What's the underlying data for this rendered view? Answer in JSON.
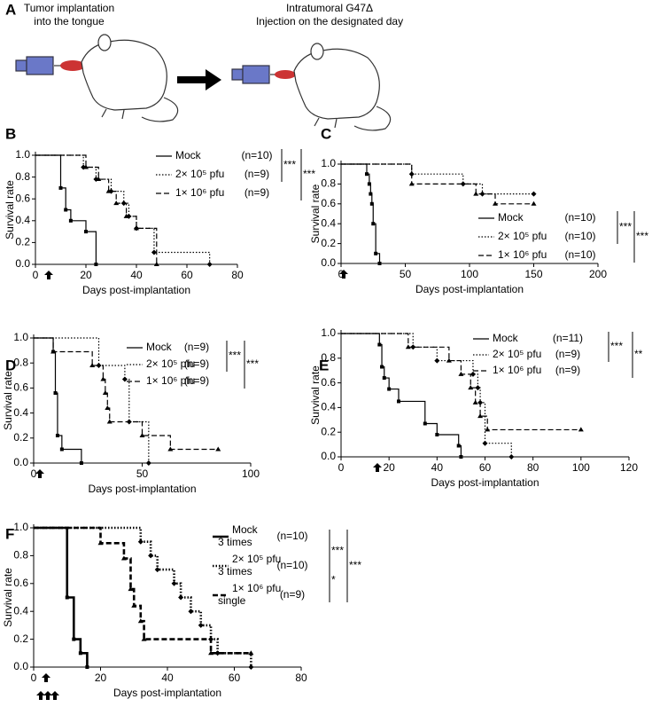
{
  "panel_a": {
    "label": "A",
    "left_caption": [
      "Tumor implantation",
      "into the tongue"
    ],
    "right_caption": [
      "Intratumoral G47Δ",
      "Injection on the designated day"
    ]
  },
  "chart_data": [
    {
      "type": "step",
      "label": "B",
      "y_title": "Survival rate",
      "x_title": "Days post-implantation",
      "line_width": 1.2,
      "xlim": [
        0,
        80
      ],
      "xticks": [
        0,
        20,
        40,
        60,
        80
      ],
      "ylim": [
        0,
        1
      ],
      "yticks": [
        {
          "value": 0,
          "label": "0.0"
        },
        {
          "value": 0.2,
          "label": "0.2"
        },
        {
          "value": 0.4,
          "label": "0.4"
        },
        {
          "value": 0.6,
          "label": "0.6"
        },
        {
          "value": 0.8,
          "label": "0.8"
        },
        {
          "value": 1,
          "label": "1.0"
        }
      ],
      "series": [
        {
          "name": "Mock",
          "n_label": "(n=10)",
          "color": "#000000",
          "style": "solid",
          "x": [
            0,
            10,
            12,
            14,
            20,
            24
          ],
          "values": [
            1,
            0.7,
            0.5,
            0.4,
            0.3,
            0
          ]
        },
        {
          "name": "2× 10⁵ pfu",
          "n_label": "(n=9)",
          "color": "#000000",
          "style": "dotted",
          "x": [
            0,
            19,
            24,
            30,
            35,
            37,
            40,
            47,
            69
          ],
          "values": [
            1,
            0.89,
            0.78,
            0.67,
            0.56,
            0.44,
            0.33,
            0.11,
            0
          ]
        },
        {
          "name": "1× 10⁶ pfu",
          "n_label": "(n=9)",
          "color": "#000000",
          "style": "dashed",
          "x": [
            0,
            20,
            25,
            29,
            32,
            36,
            40,
            48
          ],
          "values": [
            1,
            0.89,
            0.78,
            0.67,
            0.56,
            0.44,
            0.33,
            0
          ]
        }
      ],
      "significance": [
        "***",
        "***"
      ]
    },
    {
      "type": "step",
      "label": "C",
      "y_title": "Survival rate",
      "x_title": "Days post-implantation",
      "line_width": 1.2,
      "xlim": [
        0,
        200
      ],
      "xticks": [
        0,
        50,
        100,
        150,
        200
      ],
      "ylim": [
        0,
        1
      ],
      "yticks": [
        {
          "value": 0,
          "label": "0.0"
        },
        {
          "value": 0.2,
          "label": "0.2"
        },
        {
          "value": 0.4,
          "label": "0.4"
        },
        {
          "value": 0.6,
          "label": "0.6"
        },
        {
          "value": 0.8,
          "label": "0.8"
        },
        {
          "value": 1,
          "label": "1.0"
        }
      ],
      "series": [
        {
          "name": "Mock",
          "n_label": "(n=10)",
          "color": "#000000",
          "style": "solid",
          "x": [
            0,
            20,
            22,
            23,
            24,
            25,
            27,
            30
          ],
          "values": [
            1,
            0.9,
            0.8,
            0.7,
            0.6,
            0.4,
            0.1,
            0
          ]
        },
        {
          "name": "2× 10⁵ pfu",
          "n_label": "(n=10)",
          "color": "#000000",
          "style": "dotted",
          "x": [
            0,
            55,
            95,
            110,
            150
          ],
          "values": [
            1,
            0.9,
            0.8,
            0.7,
            0.7
          ]
        },
        {
          "name": "1× 10⁶ pfu",
          "n_label": "(n=10)",
          "color": "#000000",
          "style": "dashed",
          "x": [
            0,
            55,
            105,
            120,
            150
          ],
          "values": [
            1,
            0.8,
            0.7,
            0.6,
            0.6
          ]
        }
      ],
      "significance": [
        "***",
        "***"
      ]
    },
    {
      "type": "step",
      "label": "D",
      "y_title": "Survival rate",
      "x_title": "Days post-implantation",
      "line_width": 1.2,
      "xlim": [
        0,
        100
      ],
      "xticks": [
        0,
        50,
        100
      ],
      "ylim": [
        0,
        1
      ],
      "yticks": [
        {
          "value": 0,
          "label": "0.0"
        },
        {
          "value": 0.2,
          "label": "0.2"
        },
        {
          "value": 0.4,
          "label": "0.4"
        },
        {
          "value": 0.6,
          "label": "0.6"
        },
        {
          "value": 0.8,
          "label": "0.8"
        },
        {
          "value": 1,
          "label": "1.0"
        }
      ],
      "series": [
        {
          "name": "Mock",
          "n_label": "(n=9)",
          "color": "#000000",
          "style": "solid",
          "x": [
            0,
            9,
            10,
            11,
            13,
            22
          ],
          "values": [
            1,
            0.89,
            0.56,
            0.22,
            0.11,
            0
          ]
        },
        {
          "name": "2× 10⁵ pfu",
          "n_label": "(n=9)",
          "color": "#000000",
          "style": "dotted",
          "x": [
            0,
            30,
            42,
            44,
            53
          ],
          "values": [
            1,
            0.78,
            0.67,
            0.33,
            0
          ]
        },
        {
          "name": "1× 10⁶ pfu",
          "n_label": "(n=9)",
          "color": "#000000",
          "style": "dashed",
          "x": [
            0,
            9,
            27,
            32,
            33,
            34,
            35,
            50,
            63,
            85
          ],
          "values": [
            1,
            0.89,
            0.78,
            0.67,
            0.56,
            0.44,
            0.33,
            0.22,
            0.11,
            0.11
          ]
        }
      ],
      "significance": [
        "***",
        "***"
      ]
    },
    {
      "type": "step",
      "label": "E",
      "y_title": "Survival rate",
      "x_title": "Days post-implantation",
      "line_width": 1.2,
      "xlim": [
        0,
        120
      ],
      "xticks": [
        0,
        20,
        40,
        60,
        80,
        100,
        120
      ],
      "ylim": [
        0,
        1
      ],
      "yticks": [
        {
          "value": 0,
          "label": "0.0"
        },
        {
          "value": 0.2,
          "label": "0.2"
        },
        {
          "value": 0.4,
          "label": "0.4"
        },
        {
          "value": 0.6,
          "label": "0.6"
        },
        {
          "value": 0.8,
          "label": "0.8"
        },
        {
          "value": 1,
          "label": "1.0"
        }
      ],
      "series": [
        {
          "name": "Mock",
          "n_label": "(n=11)",
          "color": "#000000",
          "style": "solid",
          "x": [
            0,
            16,
            17,
            18,
            20,
            24,
            35,
            40,
            49,
            50
          ],
          "values": [
            1,
            0.91,
            0.73,
            0.64,
            0.55,
            0.45,
            0.27,
            0.18,
            0.09,
            0
          ]
        },
        {
          "name": "2× 10⁵ pfu",
          "n_label": "(n=9)",
          "color": "#000000",
          "style": "dotted",
          "x": [
            0,
            30,
            40,
            55,
            57,
            58,
            60,
            71
          ],
          "values": [
            1,
            0.89,
            0.78,
            0.67,
            0.56,
            0.44,
            0.11,
            0
          ]
        },
        {
          "name": "1× 10⁶ pfu",
          "n_label": "(n=9)",
          "color": "#000000",
          "style": "dashed",
          "x": [
            0,
            28,
            45,
            50,
            54,
            56,
            58,
            61,
            100
          ],
          "values": [
            1,
            0.89,
            0.78,
            0.67,
            0.56,
            0.44,
            0.33,
            0.22,
            0.22
          ]
        }
      ],
      "significance": [
        "***",
        "**"
      ]
    },
    {
      "type": "step",
      "label": "F",
      "y_title": "Survival rate",
      "x_title": "Days post-implantation",
      "line_width": 2.6,
      "xlim": [
        0,
        80
      ],
      "xticks": [
        0,
        20,
        40,
        60,
        80
      ],
      "ylim": [
        0,
        1
      ],
      "yticks": [
        {
          "value": 0,
          "label": "0.0"
        },
        {
          "value": 0.2,
          "label": "0.2"
        },
        {
          "value": 0.4,
          "label": "0.4"
        },
        {
          "value": 0.6,
          "label": "0.6"
        },
        {
          "value": 0.8,
          "label": "0.8"
        },
        {
          "value": 1,
          "label": "1.0"
        }
      ],
      "series": [
        {
          "name": "Mock",
          "note": "3 times",
          "n_label": "(n=10)",
          "color": "#000000",
          "style": "solid",
          "x": [
            0,
            10,
            12,
            14,
            16
          ],
          "values": [
            1,
            0.5,
            0.2,
            0.1,
            0
          ]
        },
        {
          "name": "2× 10⁵ pfu",
          "note": "3 times",
          "n_label": "(n=10)",
          "color": "#000000",
          "style": "dotted",
          "x": [
            0,
            32,
            35,
            37,
            42,
            44,
            47,
            50,
            53,
            55,
            65
          ],
          "values": [
            1,
            0.9,
            0.8,
            0.7,
            0.6,
            0.5,
            0.4,
            0.3,
            0.2,
            0.1,
            0
          ]
        },
        {
          "name": "1× 10⁶ pfu",
          "note": "single",
          "n_label": "(n=9)",
          "color": "#000000",
          "style": "dashed",
          "x": [
            0,
            20,
            27,
            29,
            30,
            32,
            33,
            53,
            65
          ],
          "values": [
            1,
            0.89,
            0.78,
            0.56,
            0.44,
            0.33,
            0.2,
            0.1,
            0.1
          ]
        }
      ],
      "significance": [
        "***",
        "*",
        "***"
      ]
    }
  ]
}
